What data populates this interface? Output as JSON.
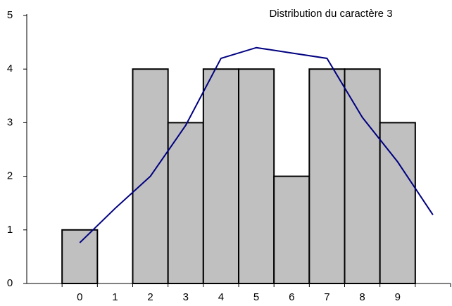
{
  "chart_data": {
    "type": "bar",
    "title": "Distribution du caractère 3",
    "categories": [
      null,
      "0",
      "1",
      "2",
      "3",
      "4",
      "5",
      "6",
      "7",
      "8",
      "9",
      null
    ],
    "series": [
      {
        "type": "bar",
        "color": "#c0c0c0",
        "values": [
          null,
          1,
          0,
          4,
          3,
          4,
          4,
          2,
          4,
          4,
          3,
          null
        ]
      },
      {
        "type": "line",
        "color": "#000080",
        "values": [
          null,
          0.76,
          1.4,
          2,
          2.95,
          4.2,
          4.4,
          4.3,
          4.2,
          3.1,
          2.27,
          1.28
        ]
      }
    ],
    "ylim": [
      0,
      5
    ],
    "yticks": [
      0,
      1,
      2,
      3,
      4,
      5
    ],
    "grid": false
  }
}
